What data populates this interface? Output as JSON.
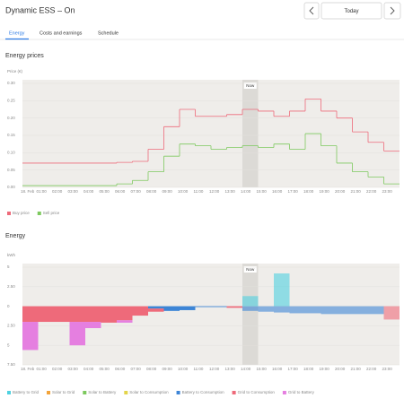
{
  "header": {
    "title": "Dynamic ESS – On",
    "today": "Today"
  },
  "tabs": [
    "Energy",
    "Costs and earnings",
    "Schedule"
  ],
  "chart_data": [
    {
      "type": "step-line",
      "title": "Energy prices",
      "y_label": "Price (€)",
      "categories": [
        "18. Feb",
        "01:00",
        "02:00",
        "03:00",
        "04:00",
        "05:00",
        "06:00",
        "07:00",
        "08:00",
        "09:00",
        "10:00",
        "11:00",
        "12:00",
        "13:00",
        "14:00",
        "15:00",
        "16:00",
        "17:00",
        "18:00",
        "19:00",
        "20:00",
        "21:00",
        "22:00",
        "23:00"
      ],
      "now": {
        "label": "Now",
        "index": 14
      },
      "ylim": [
        0,
        0.3
      ],
      "yticks": [
        {
          "value": 0,
          "label": "0.00"
        },
        0.05,
        {
          "value": 0.1,
          "label": "0.10"
        },
        0.15,
        {
          "value": 0.2,
          "label": "0.20"
        },
        0.25,
        {
          "value": 0.3,
          "label": "0.30"
        }
      ],
      "series": [
        {
          "name": "Buy price",
          "color": "#ee6a7a",
          "values": [
            0.07,
            0.07,
            0.07,
            0.07,
            0.07,
            0.07,
            0.072,
            0.075,
            0.11,
            0.175,
            0.225,
            0.205,
            0.205,
            0.21,
            0.225,
            0.22,
            0.205,
            0.22,
            0.255,
            0.22,
            0.2,
            0.16,
            0.13,
            0.105
          ]
        },
        {
          "name": "Sell price",
          "color": "#7dc95e",
          "values": [
            0.005,
            0.005,
            0.005,
            0.005,
            0.005,
            0.005,
            0.01,
            0.02,
            0.045,
            0.09,
            0.125,
            0.12,
            0.11,
            0.115,
            0.12,
            0.115,
            0.125,
            0.11,
            0.155,
            0.12,
            0.07,
            0.045,
            0.03,
            0.01
          ]
        }
      ]
    },
    {
      "type": "stacked-bar",
      "title": "Energy",
      "y_label": "kWh",
      "categories": [
        "18. Feb",
        "01:00",
        "02:00",
        "03:00",
        "04:00",
        "05:00",
        "06:00",
        "07:00",
        "08:00",
        "09:00",
        "10:00",
        "11:00",
        "12:00",
        "13:00",
        "14:00",
        "15:00",
        "16:00",
        "17:00",
        "18:00",
        "19:00",
        "20:00",
        "21:00",
        "22:00",
        "23:00"
      ],
      "now": {
        "label": "Now",
        "index": 14
      },
      "ylim": [
        -7.5,
        5
      ],
      "yticks": [
        {
          "value": -7.5,
          "label": "7.50"
        },
        {
          "value": -5,
          "label": "5"
        },
        {
          "value": -2.5,
          "label": "2.50"
        },
        0,
        {
          "value": 2.5,
          "label": "2.50"
        },
        5
      ],
      "series": [
        {
          "name": "Battery to Grid",
          "color": "#4fd1e0",
          "values": [
            0,
            0,
            0,
            0,
            0,
            0,
            0,
            0,
            0,
            0,
            0,
            0,
            0,
            0,
            1.3,
            0,
            4.2,
            0,
            0,
            0,
            0,
            0,
            0,
            0
          ]
        },
        {
          "name": "Solar to Grid",
          "color": "#f2a33a",
          "values": [
            0,
            0,
            0,
            0,
            0,
            0,
            0,
            0,
            0,
            0,
            0,
            0,
            0,
            0,
            0,
            0,
            0,
            0,
            0,
            0,
            0,
            0,
            0,
            0
          ]
        },
        {
          "name": "Solar to Battery",
          "color": "#7dc95e",
          "values": [
            0,
            0,
            0,
            0,
            0,
            0,
            0,
            0,
            0,
            0,
            0,
            0,
            0,
            0,
            0,
            0,
            0,
            0,
            0,
            0,
            0,
            0,
            0,
            0
          ]
        },
        {
          "name": "Solar to Consumption",
          "color": "#e3d44a",
          "values": [
            0,
            0,
            0,
            0,
            0,
            0,
            0,
            0,
            0,
            0,
            0,
            0,
            0,
            0,
            0,
            0,
            0,
            0,
            0,
            0,
            0,
            0,
            0,
            0
          ]
        },
        {
          "name": "Battery to Consumption",
          "color": "#3d85d6",
          "values": [
            0,
            0,
            0,
            0,
            0,
            0,
            0,
            0,
            -0.3,
            -0.6,
            -0.5,
            -0.1,
            -0.1,
            0,
            -0.6,
            -0.7,
            -0.8,
            -0.9,
            -0.9,
            -1,
            -1,
            -1,
            -1,
            0
          ]
        },
        {
          "name": "Grid to Consumption",
          "color": "#ee6a7a",
          "values": [
            -2,
            -2,
            -2,
            -2,
            -2,
            -2.1,
            -1.8,
            -1.2,
            -0.4,
            0,
            0,
            0,
            0,
            -0.2,
            0,
            0,
            0,
            0,
            0,
            0,
            0,
            0,
            0,
            -1.7
          ]
        },
        {
          "name": "Grid to Battery",
          "color": "#e57fe0",
          "values": [
            -3.6,
            0,
            0,
            -3,
            -0.8,
            0,
            -0.3,
            0,
            0,
            0,
            0,
            0,
            0,
            0,
            0,
            0,
            0,
            0,
            0,
            0,
            0,
            0,
            0,
            0
          ]
        }
      ]
    }
  ]
}
